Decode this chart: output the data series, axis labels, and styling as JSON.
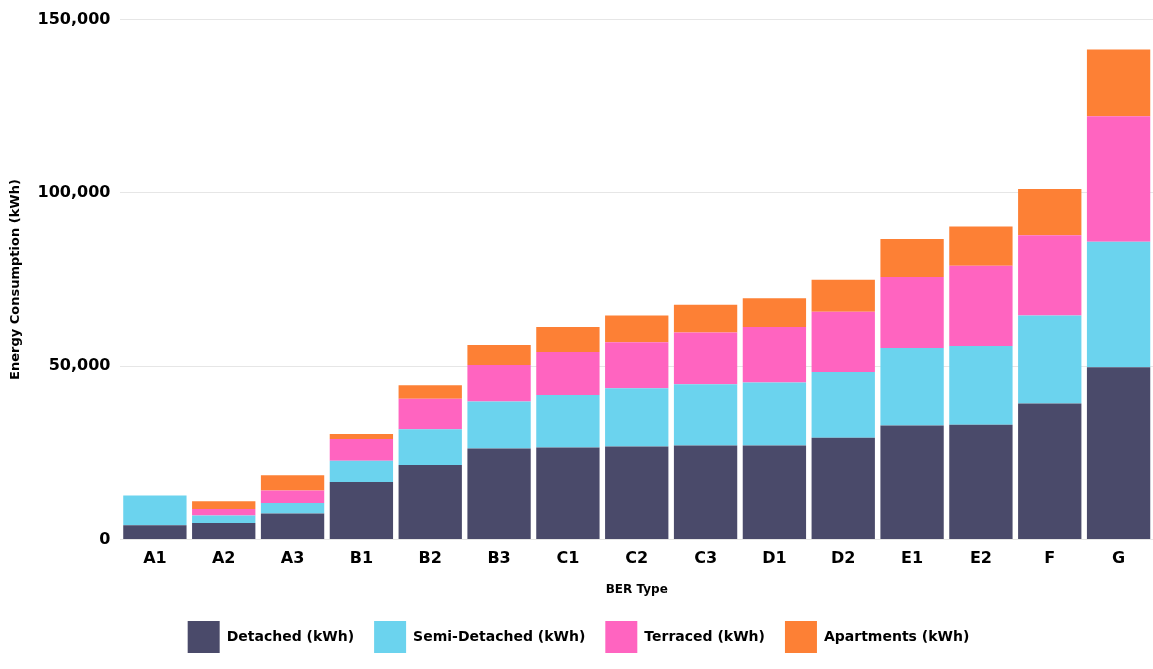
{
  "chart_data": {
    "type": "bar",
    "stacked": true,
    "xlabel": "BER Type",
    "ylabel": "Energy Consumption (kWh)",
    "categories": [
      "A1",
      "A2",
      "A3",
      "B1",
      "B2",
      "B3",
      "C1",
      "C2",
      "C3",
      "D1",
      "D2",
      "E1",
      "E2",
      "F",
      "G"
    ],
    "series": [
      {
        "name": "Detached (kWh)",
        "color": "#4a4a6a",
        "values": [
          4100,
          4700,
          7500,
          16600,
          21500,
          26200,
          26500,
          26800,
          27100,
          27100,
          29300,
          32900,
          33100,
          39200,
          49700
        ]
      },
      {
        "name": "Semi-Detached (kWh)",
        "color": "#6bd3ee",
        "values": [
          8600,
          2200,
          3000,
          6100,
          10300,
          13600,
          15200,
          16800,
          17700,
          18200,
          19000,
          22300,
          22700,
          25400,
          36200
        ]
      },
      {
        "name": "Terraced (kWh)",
        "color": "#ff64c0",
        "values": [
          0,
          1900,
          3600,
          6300,
          8800,
          10500,
          12400,
          13300,
          14900,
          16000,
          17400,
          20500,
          23200,
          23200,
          36200
        ]
      },
      {
        "name": "Apartments (kWh)",
        "color": "#fd8035",
        "values": [
          0,
          2200,
          4400,
          1400,
          3900,
          5800,
          7200,
          7700,
          8000,
          8300,
          9200,
          11000,
          11300,
          13300,
          19300
        ]
      }
    ],
    "ylim": [
      0,
      150000
    ],
    "yticks": [
      {
        "value": 0,
        "label": "0"
      },
      {
        "value": 50000,
        "label": "50,000"
      },
      {
        "value": 100000,
        "label": "100,000"
      },
      {
        "value": 150000,
        "label": "150,000"
      }
    ],
    "grid": "y",
    "legend": "bottom"
  }
}
